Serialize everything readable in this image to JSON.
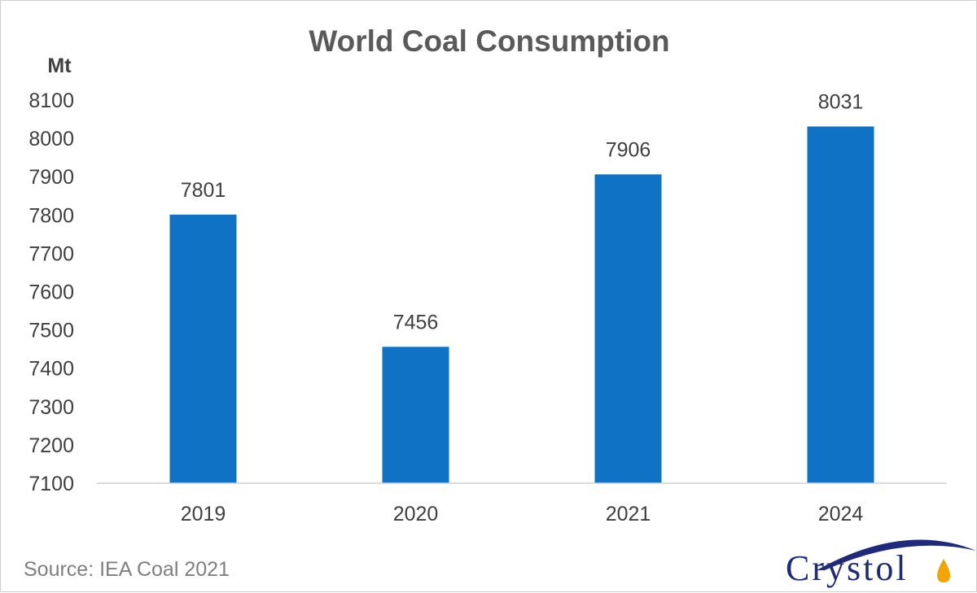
{
  "chart_data": {
    "type": "bar",
    "title": "World Coal Consumption",
    "ylabel": "Mt",
    "xlabel": "",
    "categories": [
      "2019",
      "2020",
      "2021",
      "2024"
    ],
    "values": [
      7801,
      7456,
      7906,
      8031
    ],
    "data_labels": [
      "7801",
      "7456",
      "7906",
      "8031"
    ],
    "ylim": [
      7100,
      8100
    ],
    "y_ticks": [
      7100,
      7200,
      7300,
      7400,
      7500,
      7600,
      7700,
      7800,
      7900,
      8000,
      8100
    ],
    "grid": false,
    "legend": "none",
    "bar_color": "#0f72c4"
  },
  "source": "Source: IEA Coal 2021",
  "logo": {
    "text": "Crystol",
    "color": "#1f2a7a",
    "accent_color": "#f2a400"
  }
}
